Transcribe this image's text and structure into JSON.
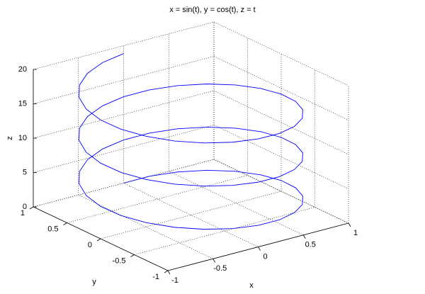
{
  "chart_data": {
    "type": "line3d",
    "title": "x = sin(t), y = cos(t), z = t",
    "xlabel": "x",
    "ylabel": "y",
    "zlabel": "z",
    "color": "#0000ff",
    "grid": true,
    "xlim": [
      -1,
      1
    ],
    "ylim": [
      -1,
      1
    ],
    "zlim": [
      0,
      20
    ],
    "xticks": [
      -1,
      -0.5,
      0,
      0.5,
      1
    ],
    "yticks": [
      -1,
      -0.5,
      0,
      0.5,
      1
    ],
    "zticks": [
      0,
      5,
      10,
      15,
      20
    ],
    "x": [
      0,
      0.259,
      0.5,
      0.707,
      0.866,
      0.966,
      1,
      0.966,
      0.866,
      0.707,
      0.5,
      0.259,
      0,
      -0.259,
      -0.5,
      -0.707,
      -0.866,
      -0.966,
      -1,
      -0.966,
      -0.866,
      -0.707,
      -0.5,
      -0.259,
      0,
      0.259,
      0.5,
      0.707,
      0.866,
      0.966,
      1,
      0.966,
      0.866,
      0.707,
      0.5,
      0.259,
      0,
      -0.259,
      -0.5,
      -0.707,
      -0.866,
      -0.966,
      -1,
      -0.966,
      -0.866,
      -0.707,
      -0.5,
      -0.259,
      0,
      0.259,
      0.5,
      0.707,
      0.866,
      0.966,
      1,
      0.966,
      0.866,
      0.707,
      0.5,
      0.259,
      0,
      -0.259,
      -0.5,
      -0.707,
      -0.866,
      -0.966,
      -1,
      -0.966,
      -0.866,
      -0.707,
      -0.5,
      -0.259,
      0
    ],
    "y": [
      1,
      0.966,
      0.866,
      0.707,
      0.5,
      0.259,
      0,
      -0.259,
      -0.5,
      -0.707,
      -0.866,
      -0.966,
      -1,
      -0.966,
      -0.866,
      -0.707,
      -0.5,
      -0.259,
      0,
      0.259,
      0.5,
      0.707,
      0.866,
      0.966,
      1,
      0.966,
      0.866,
      0.707,
      0.5,
      0.259,
      0,
      -0.259,
      -0.5,
      -0.707,
      -0.866,
      -0.966,
      -1,
      -0.966,
      -0.866,
      -0.707,
      -0.5,
      -0.259,
      0,
      0.259,
      0.5,
      0.707,
      0.866,
      0.966,
      1,
      0.966,
      0.866,
      0.707,
      0.5,
      0.259,
      0,
      -0.259,
      -0.5,
      -0.707,
      -0.866,
      -0.966,
      -1,
      -0.966,
      -0.866,
      -0.707,
      -0.5,
      -0.259,
      0,
      0.259,
      0.5,
      0.707,
      0.866,
      0.966,
      1
    ],
    "z": [
      0,
      0.26,
      0.52,
      0.79,
      1.05,
      1.31,
      1.57,
      1.83,
      2.09,
      2.36,
      2.62,
      2.88,
      3.14,
      3.4,
      3.67,
      3.93,
      4.19,
      4.45,
      4.71,
      4.97,
      5.24,
      5.5,
      5.76,
      6.02,
      6.28,
      6.54,
      6.81,
      7.07,
      7.33,
      7.59,
      7.85,
      8.12,
      8.38,
      8.64,
      8.9,
      9.16,
      9.42,
      9.69,
      9.95,
      10.21,
      10.47,
      10.73,
      11.0,
      11.26,
      11.52,
      11.78,
      12.04,
      12.3,
      12.57,
      12.83,
      13.09,
      13.35,
      13.61,
      13.88,
      14.14,
      14.4,
      14.66,
      14.92,
      15.18,
      15.45,
      15.71,
      15.97,
      16.23,
      16.49,
      16.76,
      17.02,
      17.28,
      17.54,
      17.8,
      18.06,
      18.33,
      18.59,
      18.85
    ]
  }
}
